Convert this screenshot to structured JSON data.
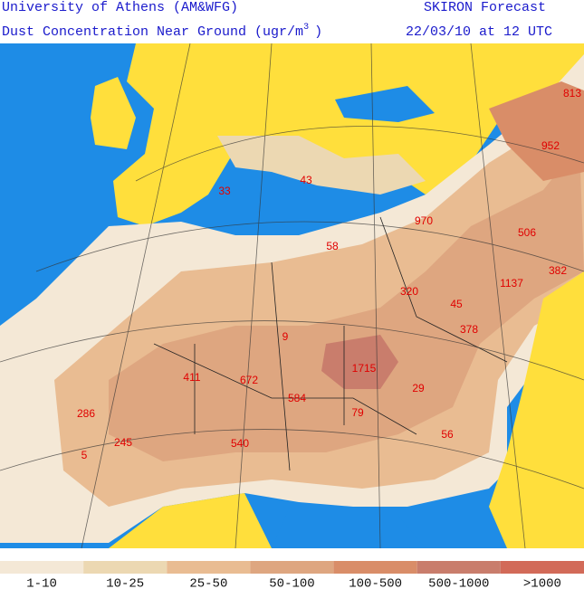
{
  "header": {
    "institution": "University of Athens (AM&WFG)",
    "product": "SKIRON Forecast",
    "title": "Dust Concentration Near Ground (ugr/m",
    "units_superscript": "3",
    "units_close": ")",
    "valid_time": "22/03/10 at 12 UTC"
  },
  "map": {
    "labels": [
      813,
      952,
      33,
      43,
      970,
      506,
      58,
      382,
      320,
      45,
      1137,
      378,
      9,
      411,
      672,
      1715,
      584,
      29,
      286,
      79,
      56,
      245,
      540,
      5
    ]
  },
  "legend": {
    "items": [
      {
        "label": "1-10",
        "color": "#f4e8d6"
      },
      {
        "label": "10-25",
        "color": "#ecd8b2"
      },
      {
        "label": "25-50",
        "color": "#e9bc92"
      },
      {
        "label": "50-100",
        "color": "#dea680"
      },
      {
        "label": "100-500",
        "color": "#d98d68"
      },
      {
        "label": "500-1000",
        "color": "#c97d6c"
      },
      {
        "label": ">1000",
        "color": "#d26a58"
      }
    ]
  }
}
